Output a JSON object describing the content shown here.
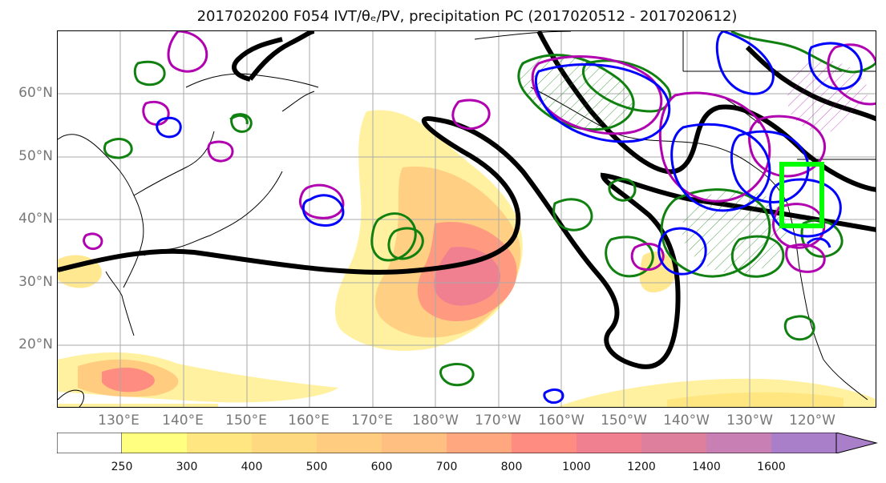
{
  "title": "2017020200 F054 IVT/θₑ/PV, precipitation PC (2017020512 - 2017020612)",
  "axes": {
    "lat_labels": [
      "60°N",
      "50°N",
      "40°N",
      "30°N",
      "20°N"
    ],
    "lon_labels": [
      "130°E",
      "140°E",
      "150°E",
      "160°E",
      "170°E",
      "180°W",
      "170°W",
      "160°W",
      "150°W",
      "140°W",
      "130°W",
      "120°W"
    ]
  },
  "colorbar": {
    "ticks": [
      "250",
      "300",
      "400",
      "500",
      "600",
      "700",
      "800",
      "1000",
      "1200",
      "1400",
      "1600"
    ],
    "colors": [
      "#ffffff",
      "#ffff80",
      "#ffe680",
      "#ffd980",
      "#ffcc80",
      "#ffbf80",
      "#ffa880",
      "#ff8c80",
      "#f07f90",
      "#de7f9e",
      "#c880b4",
      "#a87fc8"
    ]
  },
  "colors": {
    "contour_black": "#000000",
    "contour_magenta": "#b000b0",
    "contour_blue": "#0000ff",
    "contour_green": "#108010",
    "box_green": "#00ff00"
  }
}
